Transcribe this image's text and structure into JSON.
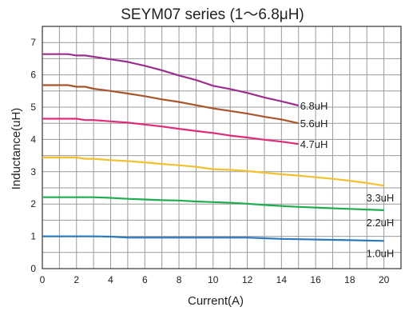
{
  "chart_data": {
    "type": "line",
    "title": "SEYM07 series (1〜6.8μH)",
    "xlabel": "Current(A)",
    "ylabel": "Inductance(uH)",
    "xlim": [
      0,
      21
    ],
    "ylim": [
      0,
      7.5
    ],
    "xticks": [
      0,
      2,
      4,
      6,
      8,
      10,
      12,
      14,
      16,
      18,
      20
    ],
    "yticks": [
      0,
      1,
      2,
      3,
      4,
      5,
      6,
      7
    ],
    "x_minor_step": 1,
    "y_minor_step": 0.5,
    "grid": true,
    "series": [
      {
        "name": "6.8uH",
        "color": "#9b2f8f",
        "points": [
          [
            0,
            6.64
          ],
          [
            1,
            6.64
          ],
          [
            1.5,
            6.64
          ],
          [
            2,
            6.6
          ],
          [
            2.5,
            6.6
          ],
          [
            3,
            6.56
          ],
          [
            4,
            6.48
          ],
          [
            5,
            6.4
          ],
          [
            6,
            6.28
          ],
          [
            7,
            6.14
          ],
          [
            8,
            5.98
          ],
          [
            9,
            5.84
          ],
          [
            10,
            5.66
          ],
          [
            11,
            5.56
          ],
          [
            12,
            5.44
          ],
          [
            13,
            5.3
          ],
          [
            14,
            5.18
          ],
          [
            15,
            5.05
          ]
        ]
      },
      {
        "name": "5.6uH",
        "color": "#a8552b",
        "points": [
          [
            0,
            5.68
          ],
          [
            1,
            5.68
          ],
          [
            1.5,
            5.68
          ],
          [
            2,
            5.63
          ],
          [
            2.5,
            5.63
          ],
          [
            3,
            5.57
          ],
          [
            4,
            5.5
          ],
          [
            5,
            5.42
          ],
          [
            6,
            5.34
          ],
          [
            7,
            5.24
          ],
          [
            8,
            5.16
          ],
          [
            9,
            5.06
          ],
          [
            10,
            4.96
          ],
          [
            11,
            4.88
          ],
          [
            12,
            4.8
          ],
          [
            13,
            4.7
          ],
          [
            14,
            4.62
          ],
          [
            15,
            4.5
          ]
        ]
      },
      {
        "name": "4.7uH",
        "color": "#e02b7b",
        "points": [
          [
            0,
            4.64
          ],
          [
            1,
            4.64
          ],
          [
            2,
            4.64
          ],
          [
            2.5,
            4.6
          ],
          [
            3,
            4.6
          ],
          [
            4,
            4.56
          ],
          [
            5,
            4.52
          ],
          [
            6,
            4.46
          ],
          [
            7,
            4.4
          ],
          [
            8,
            4.33
          ],
          [
            9,
            4.26
          ],
          [
            10,
            4.2
          ],
          [
            11,
            4.12
          ],
          [
            12,
            4.06
          ],
          [
            13,
            3.99
          ],
          [
            14,
            3.93
          ],
          [
            15,
            3.86
          ]
        ]
      },
      {
        "name": "3.3uH",
        "color": "#f3c030",
        "points": [
          [
            0,
            3.44
          ],
          [
            1,
            3.44
          ],
          [
            2,
            3.44
          ],
          [
            2.5,
            3.4
          ],
          [
            3,
            3.4
          ],
          [
            4,
            3.36
          ],
          [
            5,
            3.33
          ],
          [
            6,
            3.29
          ],
          [
            7,
            3.24
          ],
          [
            8,
            3.2
          ],
          [
            9,
            3.15
          ],
          [
            10,
            3.08
          ],
          [
            11,
            3.06
          ],
          [
            12,
            3.02
          ],
          [
            13,
            2.97
          ],
          [
            14,
            2.92
          ],
          [
            15,
            2.88
          ],
          [
            16,
            2.83
          ],
          [
            17,
            2.78
          ],
          [
            18,
            2.72
          ],
          [
            19,
            2.65
          ],
          [
            20,
            2.57
          ]
        ]
      },
      {
        "name": "2.2uH",
        "color": "#1fae4f",
        "points": [
          [
            0,
            2.21
          ],
          [
            1,
            2.21
          ],
          [
            2,
            2.21
          ],
          [
            3,
            2.21
          ],
          [
            4,
            2.19
          ],
          [
            5,
            2.16
          ],
          [
            6,
            2.14
          ],
          [
            7,
            2.12
          ],
          [
            8,
            2.11
          ],
          [
            9,
            2.08
          ],
          [
            10,
            2.06
          ],
          [
            11,
            2.04
          ],
          [
            12,
            2.01
          ],
          [
            13,
            1.97
          ],
          [
            14,
            1.94
          ],
          [
            15,
            1.91
          ],
          [
            16,
            1.89
          ],
          [
            17,
            1.87
          ],
          [
            18,
            1.85
          ],
          [
            19,
            1.83
          ],
          [
            20,
            1.81
          ]
        ]
      },
      {
        "name": "1.0uH",
        "color": "#2e78c0",
        "points": [
          [
            0,
            1.0
          ],
          [
            2,
            1.0
          ],
          [
            3,
            1.0
          ],
          [
            4,
            0.99
          ],
          [
            5,
            0.96
          ],
          [
            6,
            0.96
          ],
          [
            8,
            0.96
          ],
          [
            10,
            0.96
          ],
          [
            12,
            0.96
          ],
          [
            13,
            0.94
          ],
          [
            14,
            0.92
          ],
          [
            15,
            0.91
          ],
          [
            16,
            0.9
          ],
          [
            17,
            0.89
          ],
          [
            18,
            0.88
          ],
          [
            19,
            0.87
          ],
          [
            20,
            0.86
          ]
        ]
      }
    ]
  }
}
